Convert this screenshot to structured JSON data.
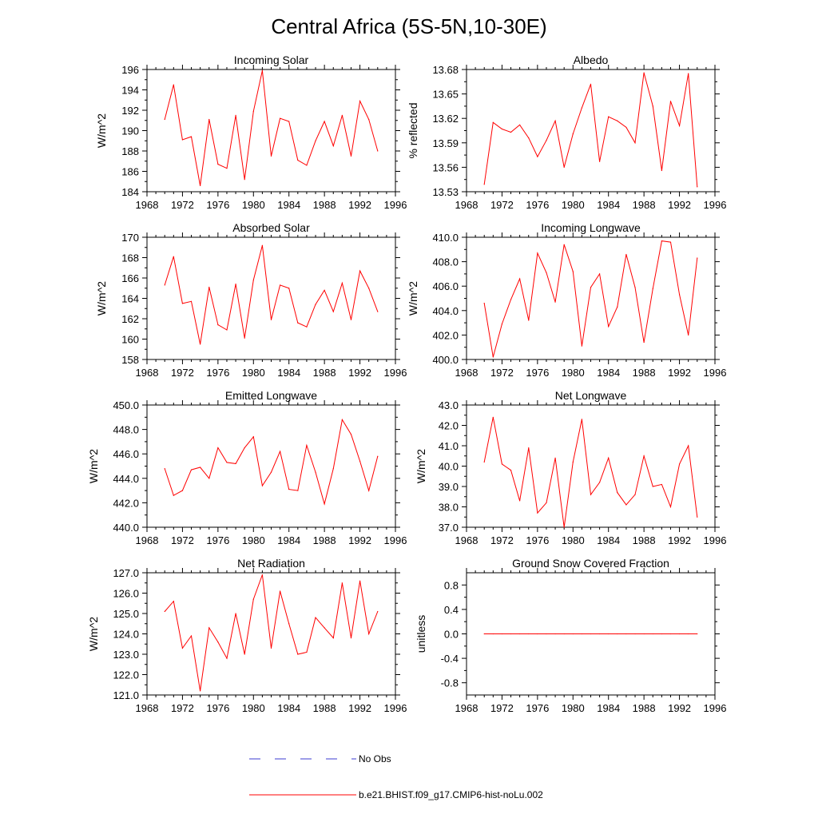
{
  "figure": {
    "title": "Central Africa (5S-5N,10-30E)"
  },
  "legend": {
    "entries": [
      {
        "label": "No Obs",
        "color": "#3b3bd0",
        "style": "dashed"
      },
      {
        "label": "b.e21.BHIST.f09_g17.CMIP6-hist-noLu.002",
        "color": "#ff0000",
        "style": "solid"
      }
    ]
  },
  "chart_data": [
    {
      "type": "line",
      "title": "Incoming Solar",
      "ylabel": "W/m^2",
      "xlim": [
        1968,
        1996
      ],
      "xticks": [
        "1968",
        "1972",
        "1976",
        "1980",
        "1984",
        "1988",
        "1992",
        "1996"
      ],
      "ylim": [
        184,
        196
      ],
      "yticks": [
        "184",
        "186",
        "188",
        "190",
        "192",
        "194",
        "196"
      ],
      "series": [
        {
          "color": "#ff0000",
          "x": [
            1970,
            1971,
            1972,
            1973,
            1974,
            1975,
            1976,
            1977,
            1978,
            1979,
            1980,
            1981,
            1982,
            1983,
            1984,
            1985,
            1986,
            1987,
            1988,
            1989,
            1990,
            1991,
            1992,
            1993,
            1994
          ],
          "y": [
            191.1,
            194.5,
            189.1,
            189.4,
            184.6,
            191.1,
            186.7,
            186.3,
            191.5,
            185.2,
            191.9,
            195.9,
            187.5,
            191.2,
            190.9,
            187.1,
            186.6,
            189.0,
            190.9,
            188.5,
            191.5,
            187.5,
            192.9,
            191.1,
            188.0
          ]
        }
      ]
    },
    {
      "type": "line",
      "title": "Albedo",
      "ylabel": "% reflected",
      "xlim": [
        1968,
        1996
      ],
      "xticks": [
        "1968",
        "1972",
        "1976",
        "1980",
        "1984",
        "1988",
        "1992",
        "1996"
      ],
      "ylim": [
        13.53,
        13.68
      ],
      "yticks": [
        "13.53",
        "13.56",
        "13.59",
        "13.62",
        "13.65",
        "13.68"
      ],
      "series": [
        {
          "color": "#ff0000",
          "x": [
            1970,
            1971,
            1972,
            1973,
            1974,
            1975,
            1976,
            1977,
            1978,
            1979,
            1980,
            1981,
            1982,
            1983,
            1984,
            1985,
            1986,
            1987,
            1988,
            1989,
            1990,
            1991,
            1992,
            1993,
            1994
          ],
          "y": [
            13.539,
            13.615,
            13.607,
            13.603,
            13.612,
            13.596,
            13.573,
            13.593,
            13.617,
            13.56,
            13.601,
            13.633,
            13.662,
            13.567,
            13.622,
            13.617,
            13.609,
            13.59,
            13.676,
            13.635,
            13.556,
            13.641,
            13.611,
            13.675,
            13.536
          ]
        }
      ]
    },
    {
      "type": "line",
      "title": "Absorbed Solar",
      "ylabel": "W/m^2",
      "xlim": [
        1968,
        1996
      ],
      "xticks": [
        "1968",
        "1972",
        "1976",
        "1980",
        "1984",
        "1988",
        "1992",
        "1996"
      ],
      "ylim": [
        158,
        170
      ],
      "yticks": [
        "158",
        "160",
        "162",
        "164",
        "166",
        "168",
        "170"
      ],
      "series": [
        {
          "color": "#ff0000",
          "x": [
            1970,
            1971,
            1972,
            1973,
            1974,
            1975,
            1976,
            1977,
            1978,
            1979,
            1980,
            1981,
            1982,
            1983,
            1984,
            1985,
            1986,
            1987,
            1988,
            1989,
            1990,
            1991,
            1992,
            1993,
            1994
          ],
          "y": [
            165.3,
            168.1,
            163.5,
            163.7,
            159.5,
            165.1,
            161.4,
            160.9,
            165.4,
            160.1,
            165.8,
            169.2,
            161.9,
            165.3,
            165.0,
            161.6,
            161.2,
            163.4,
            164.8,
            162.7,
            165.5,
            161.9,
            166.7,
            165.0,
            162.7
          ]
        }
      ]
    },
    {
      "type": "line",
      "title": "Incoming Longwave",
      "ylabel": "W/m^2",
      "xlim": [
        1968,
        1996
      ],
      "xticks": [
        "1968",
        "1972",
        "1976",
        "1980",
        "1984",
        "1988",
        "1992",
        "1996"
      ],
      "ylim": [
        400.0,
        410.0
      ],
      "yticks": [
        "400.0",
        "402.0",
        "404.0",
        "406.0",
        "408.0",
        "410.0"
      ],
      "series": [
        {
          "color": "#ff0000",
          "x": [
            1970,
            1971,
            1972,
            1973,
            1974,
            1975,
            1976,
            1977,
            1978,
            1979,
            1980,
            1981,
            1982,
            1983,
            1984,
            1985,
            1986,
            1987,
            1988,
            1989,
            1990,
            1991,
            1992,
            1993,
            1994
          ],
          "y": [
            404.6,
            400.2,
            402.9,
            404.9,
            406.6,
            403.2,
            408.7,
            407.1,
            404.7,
            409.4,
            407.2,
            401.1,
            405.9,
            407.0,
            402.7,
            404.3,
            408.6,
            405.9,
            401.4,
            405.8,
            409.7,
            409.6,
            405.3,
            402.0,
            408.3
          ]
        }
      ]
    },
    {
      "type": "line",
      "title": "Emitted Longwave",
      "ylabel": "W/m^2",
      "xlim": [
        1968,
        1996
      ],
      "xticks": [
        "1968",
        "1972",
        "1976",
        "1980",
        "1984",
        "1988",
        "1992",
        "1996"
      ],
      "ylim": [
        440.0,
        450.0
      ],
      "yticks": [
        "440.0",
        "442.0",
        "444.0",
        "446.0",
        "448.0",
        "450.0"
      ],
      "series": [
        {
          "color": "#ff0000",
          "x": [
            1970,
            1971,
            1972,
            1973,
            1974,
            1975,
            1976,
            1977,
            1978,
            1979,
            1980,
            1981,
            1982,
            1983,
            1984,
            1985,
            1986,
            1987,
            1988,
            1989,
            1990,
            1991,
            1992,
            1993,
            1994
          ],
          "y": [
            444.8,
            442.6,
            443.0,
            444.7,
            444.9,
            444.0,
            446.5,
            445.3,
            445.2,
            446.5,
            447.4,
            443.4,
            444.5,
            446.2,
            443.1,
            443.0,
            446.7,
            444.5,
            441.9,
            444.8,
            448.8,
            447.6,
            445.4,
            443.0,
            445.8
          ]
        }
      ]
    },
    {
      "type": "line",
      "title": "Net Longwave",
      "ylabel": "W/m^2",
      "xlim": [
        1968,
        1996
      ],
      "xticks": [
        "1968",
        "1972",
        "1976",
        "1980",
        "1984",
        "1988",
        "1992",
        "1996"
      ],
      "ylim": [
        37.0,
        43.0
      ],
      "yticks": [
        "37.0",
        "38.0",
        "39.0",
        "40.0",
        "41.0",
        "42.0",
        "43.0"
      ],
      "series": [
        {
          "color": "#ff0000",
          "x": [
            1970,
            1971,
            1972,
            1973,
            1974,
            1975,
            1976,
            1977,
            1978,
            1979,
            1980,
            1981,
            1982,
            1983,
            1984,
            1985,
            1986,
            1987,
            1988,
            1989,
            1990,
            1991,
            1992,
            1993,
            1994
          ],
          "y": [
            40.2,
            42.4,
            40.1,
            39.8,
            38.3,
            40.9,
            37.7,
            38.2,
            40.4,
            37.0,
            40.2,
            42.3,
            38.6,
            39.2,
            40.4,
            38.7,
            38.1,
            38.6,
            40.5,
            39.0,
            39.1,
            38.0,
            40.1,
            41.0,
            37.5
          ]
        }
      ]
    },
    {
      "type": "line",
      "title": "Net Radiation",
      "ylabel": "W/m^2",
      "xlim": [
        1968,
        1996
      ],
      "xticks": [
        "1968",
        "1972",
        "1976",
        "1980",
        "1984",
        "1988",
        "1992",
        "1996"
      ],
      "ylim": [
        121.0,
        127.0
      ],
      "yticks": [
        "121.0",
        "122.0",
        "123.0",
        "124.0",
        "125.0",
        "126.0",
        "127.0"
      ],
      "series": [
        {
          "color": "#ff0000",
          "x": [
            1970,
            1971,
            1972,
            1973,
            1974,
            1975,
            1976,
            1977,
            1978,
            1979,
            1980,
            1981,
            1982,
            1983,
            1984,
            1985,
            1986,
            1987,
            1988,
            1989,
            1990,
            1991,
            1992,
            1993,
            1994
          ],
          "y": [
            125.1,
            125.6,
            123.3,
            123.9,
            121.2,
            124.3,
            123.6,
            122.8,
            125.0,
            123.0,
            125.7,
            126.9,
            123.3,
            126.1,
            124.5,
            123.0,
            123.1,
            124.8,
            124.3,
            123.8,
            126.5,
            123.8,
            126.6,
            124.0,
            125.1
          ]
        }
      ]
    },
    {
      "type": "line",
      "title": "Ground Snow Covered Fraction",
      "ylabel": "unitless",
      "xlim": [
        1968,
        1996
      ],
      "xticks": [
        "1968",
        "1972",
        "1976",
        "1980",
        "1984",
        "1988",
        "1992",
        "1996"
      ],
      "ylim": [
        -1.0,
        1.0
      ],
      "yticks": [
        "-0.8",
        "-0.4",
        "0.0",
        "0.4",
        "0.8"
      ],
      "ytick_values": [
        -0.8,
        -0.4,
        0.0,
        0.4,
        0.8
      ],
      "series": [
        {
          "color": "#ff0000",
          "x": [
            1970,
            1971,
            1972,
            1973,
            1974,
            1975,
            1976,
            1977,
            1978,
            1979,
            1980,
            1981,
            1982,
            1983,
            1984,
            1985,
            1986,
            1987,
            1988,
            1989,
            1990,
            1991,
            1992,
            1993,
            1994
          ],
          "y": [
            0,
            0,
            0,
            0,
            0,
            0,
            0,
            0,
            0,
            0,
            0,
            0,
            0,
            0,
            0,
            0,
            0,
            0,
            0,
            0,
            0,
            0,
            0,
            0,
            0
          ]
        }
      ]
    }
  ]
}
